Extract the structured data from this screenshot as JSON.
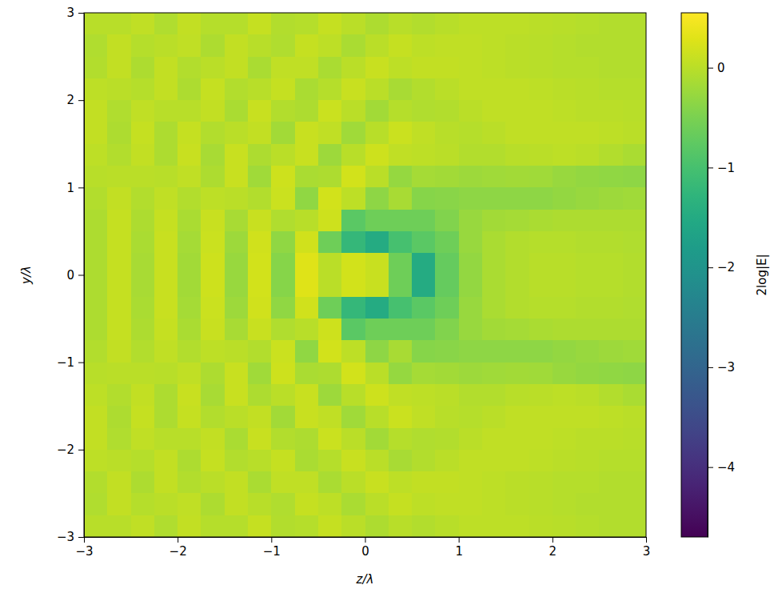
{
  "chart_data": {
    "type": "heatmap",
    "xlabel": "z/λ",
    "ylabel": "y/λ",
    "xlim": [
      -3,
      3
    ],
    "ylim": [
      -3,
      3
    ],
    "xticks": [
      {
        "value": -3,
        "label": "−3"
      },
      {
        "value": -2,
        "label": "−2"
      },
      {
        "value": -1,
        "label": "−1"
      },
      0,
      1,
      2,
      3
    ],
    "yticks": [
      {
        "value": -3,
        "label": "−3"
      },
      {
        "value": -2,
        "label": "−2"
      },
      {
        "value": -1,
        "label": "−1"
      },
      0,
      1,
      2,
      3
    ],
    "x": [
      -2.875,
      -2.625,
      -2.375,
      -2.125,
      -1.875,
      -1.625,
      -1.375,
      -1.125,
      -0.875,
      -0.625,
      -0.375,
      -0.125,
      0.125,
      0.375,
      0.625,
      0.875,
      1.125,
      1.375,
      1.625,
      1.875,
      2.125,
      2.375,
      2.625,
      2.875
    ],
    "y": [
      2.875,
      2.625,
      2.375,
      2.125,
      1.875,
      1.625,
      1.375,
      1.125,
      0.875,
      0.625,
      0.375,
      0.125,
      -0.125,
      -0.375,
      -0.625,
      -0.875,
      -1.125,
      -1.375,
      -1.625,
      -1.875,
      -2.125,
      -2.375,
      -2.625,
      -2.875
    ],
    "values": [
      [
        -0.02,
        -0.01,
        0.04,
        -0.08,
        0.07,
        -0.04,
        -0.03,
        0.08,
        -0.06,
        -0.04,
        0.08,
        0.0,
        -0.1,
        -0.01,
        -0.06,
        -0.02,
        0.02,
        0.03,
        0.02,
        0.0,
        -0.02,
        -0.04,
        -0.05,
        -0.06
      ],
      [
        -0.07,
        0.06,
        -0.04,
        0.0,
        0.05,
        -0.09,
        0.07,
        -0.01,
        -0.08,
        0.08,
        0.02,
        -0.11,
        0.0,
        0.09,
        0.03,
        0.05,
        0.04,
        0.02,
        0.0,
        -0.02,
        -0.04,
        -0.05,
        -0.06,
        -0.06
      ],
      [
        -0.05,
        0.06,
        -0.09,
        0.07,
        -0.05,
        0.0,
        0.06,
        -0.11,
        0.05,
        0.05,
        -0.12,
        0.0,
        0.1,
        0.02,
        0.07,
        0.06,
        0.04,
        0.02,
        0.0,
        -0.02,
        -0.03,
        -0.04,
        -0.05,
        -0.05
      ],
      [
        0.02,
        0.0,
        -0.03,
        0.06,
        -0.1,
        0.08,
        -0.06,
        -0.02,
        0.09,
        -0.11,
        -0.03,
        0.11,
        0.0,
        -0.14,
        -0.05,
        0.0,
        0.04,
        0.05,
        0.04,
        0.02,
        0.0,
        -0.02,
        -0.03,
        -0.04
      ],
      [
        0.07,
        -0.07,
        0.05,
        -0.02,
        -0.02,
        0.06,
        -0.12,
        0.1,
        -0.05,
        -0.09,
        0.12,
        0.01,
        -0.17,
        -0.03,
        -0.08,
        -0.05,
        0.0,
        0.04,
        0.05,
        0.05,
        0.03,
        0.01,
        0.0,
        -0.02
      ],
      [
        0.07,
        -0.09,
        0.08,
        -0.1,
        0.08,
        -0.06,
        0.0,
        0.07,
        -0.17,
        0.1,
        0.04,
        -0.2,
        -0.01,
        0.13,
        0.05,
        -0.02,
        -0.03,
        0.01,
        0.04,
        0.05,
        0.05,
        0.04,
        0.02,
        0.0
      ],
      [
        0.03,
        -0.05,
        0.06,
        -0.1,
        0.1,
        -0.14,
        0.11,
        -0.1,
        0.0,
        0.11,
        -0.22,
        -0.01,
        0.16,
        0.05,
        0.02,
        0.0,
        -0.05,
        -0.05,
        -0.02,
        0.01,
        0.02,
        0.01,
        -0.05,
        -0.12
      ],
      [
        -0.02,
        0.01,
        0.0,
        -0.02,
        0.04,
        -0.09,
        0.11,
        -0.2,
        0.15,
        -0.12,
        -0.09,
        0.19,
        0.01,
        -0.28,
        -0.15,
        -0.18,
        -0.22,
        -0.2,
        -0.18,
        -0.2,
        -0.25,
        -0.3,
        -0.33,
        -0.35
      ],
      [
        -0.06,
        0.06,
        -0.06,
        0.05,
        -0.05,
        0.03,
        0.0,
        -0.06,
        0.12,
        -0.33,
        0.19,
        0.02,
        -0.35,
        -0.14,
        -0.4,
        -0.38,
        -0.35,
        -0.35,
        -0.35,
        -0.35,
        -0.3,
        -0.25,
        -0.22,
        -0.2
      ],
      [
        -0.09,
        0.08,
        -0.1,
        0.09,
        -0.12,
        0.1,
        -0.13,
        0.1,
        -0.08,
        -0.02,
        0.14,
        -0.8,
        -0.6,
        -0.6,
        -0.6,
        -0.45,
        -0.25,
        -0.18,
        -0.15,
        -0.12,
        -0.1,
        -0.1,
        -0.1,
        -0.1
      ],
      [
        -0.1,
        0.09,
        -0.12,
        0.11,
        -0.16,
        0.13,
        -0.22,
        0.17,
        -0.33,
        0.17,
        -0.6,
        -1.2,
        -1.5,
        -1.0,
        -0.8,
        -0.6,
        -0.25,
        -0.12,
        -0.06,
        -0.04,
        -0.04,
        -0.05,
        -0.06,
        -0.07
      ],
      [
        -0.1,
        0.09,
        -0.13,
        0.11,
        -0.17,
        0.14,
        -0.25,
        0.19,
        -0.4,
        0.3,
        0.0,
        0.2,
        0.1,
        -0.6,
        -1.5,
        -0.7,
        -0.3,
        -0.12,
        -0.05,
        -0.02,
        -0.02,
        -0.03,
        -0.04,
        -0.05
      ],
      [
        -0.1,
        0.09,
        -0.13,
        0.11,
        -0.17,
        0.14,
        -0.25,
        0.19,
        -0.4,
        0.3,
        0.0,
        0.2,
        0.1,
        -0.6,
        -1.5,
        -0.7,
        -0.3,
        -0.12,
        -0.05,
        -0.02,
        -0.02,
        -0.03,
        -0.04,
        -0.05
      ],
      [
        -0.1,
        0.09,
        -0.12,
        0.11,
        -0.16,
        0.13,
        -0.22,
        0.17,
        -0.33,
        0.17,
        -0.6,
        -1.2,
        -1.5,
        -1.0,
        -0.8,
        -0.6,
        -0.25,
        -0.12,
        -0.06,
        -0.04,
        -0.04,
        -0.05,
        -0.06,
        -0.07
      ],
      [
        -0.09,
        0.08,
        -0.1,
        0.09,
        -0.12,
        0.1,
        -0.13,
        0.1,
        -0.08,
        -0.02,
        0.14,
        -0.8,
        -0.6,
        -0.6,
        -0.6,
        -0.45,
        -0.25,
        -0.18,
        -0.15,
        -0.12,
        -0.1,
        -0.1,
        -0.1,
        -0.1
      ],
      [
        -0.06,
        0.06,
        -0.06,
        0.05,
        -0.05,
        0.03,
        0.0,
        -0.06,
        0.12,
        -0.33,
        0.19,
        0.02,
        -0.35,
        -0.14,
        -0.4,
        -0.38,
        -0.35,
        -0.35,
        -0.35,
        -0.35,
        -0.3,
        -0.25,
        -0.22,
        -0.2
      ],
      [
        -0.02,
        0.01,
        0.0,
        -0.02,
        0.04,
        -0.09,
        0.11,
        -0.2,
        0.15,
        -0.12,
        -0.09,
        0.19,
        0.01,
        -0.28,
        -0.15,
        -0.18,
        -0.22,
        -0.2,
        -0.18,
        -0.2,
        -0.25,
        -0.3,
        -0.33,
        -0.35
      ],
      [
        0.03,
        -0.05,
        0.06,
        -0.1,
        0.1,
        -0.14,
        0.11,
        -0.1,
        0.0,
        0.11,
        -0.22,
        -0.01,
        0.16,
        0.05,
        0.02,
        0.0,
        -0.05,
        -0.05,
        -0.02,
        0.01,
        0.02,
        0.01,
        -0.05,
        -0.12
      ],
      [
        0.07,
        -0.09,
        0.08,
        -0.1,
        0.08,
        -0.06,
        0.0,
        0.07,
        -0.17,
        0.1,
        0.04,
        -0.2,
        -0.01,
        0.13,
        0.05,
        -0.02,
        -0.03,
        0.01,
        0.04,
        0.05,
        0.05,
        0.04,
        0.02,
        0.0
      ],
      [
        0.07,
        -0.07,
        0.05,
        -0.02,
        -0.02,
        0.06,
        -0.12,
        0.1,
        -0.05,
        -0.09,
        0.12,
        0.01,
        -0.17,
        -0.03,
        -0.08,
        -0.05,
        0.0,
        0.04,
        0.05,
        0.05,
        0.03,
        0.01,
        0.0,
        -0.02
      ],
      [
        0.02,
        0.0,
        -0.03,
        0.06,
        -0.1,
        0.08,
        -0.06,
        -0.02,
        0.09,
        -0.11,
        -0.03,
        0.11,
        0.0,
        -0.14,
        -0.05,
        0.0,
        0.04,
        0.05,
        0.04,
        0.02,
        0.0,
        -0.02,
        -0.03,
        -0.04
      ],
      [
        -0.05,
        0.06,
        -0.09,
        0.07,
        -0.05,
        0.0,
        0.06,
        -0.11,
        0.05,
        0.05,
        -0.12,
        0.0,
        0.1,
        0.02,
        0.07,
        0.06,
        0.04,
        0.02,
        0.0,
        -0.02,
        -0.03,
        -0.04,
        -0.05,
        -0.05
      ],
      [
        -0.07,
        0.06,
        -0.04,
        0.0,
        0.05,
        -0.09,
        0.07,
        -0.01,
        -0.08,
        0.08,
        0.02,
        -0.11,
        0.0,
        0.09,
        0.03,
        0.05,
        0.04,
        0.02,
        0.0,
        -0.02,
        -0.04,
        -0.05,
        -0.06,
        -0.06
      ],
      [
        -0.02,
        -0.01,
        0.04,
        -0.08,
        0.07,
        -0.04,
        -0.03,
        0.08,
        -0.06,
        -0.04,
        0.08,
        0.0,
        -0.1,
        -0.01,
        -0.06,
        -0.02,
        0.02,
        0.03,
        0.02,
        0.0,
        -0.02,
        -0.04,
        -0.05,
        -0.06
      ]
    ],
    "colorbar": {
      "label": "2log|E|",
      "range": [
        -4.7,
        0.55
      ],
      "ticks": [
        {
          "value": -4,
          "label": "−4"
        },
        {
          "value": -3,
          "label": "−3"
        },
        {
          "value": -2,
          "label": "−2"
        },
        {
          "value": -1,
          "label": "−1"
        },
        0
      ]
    }
  }
}
